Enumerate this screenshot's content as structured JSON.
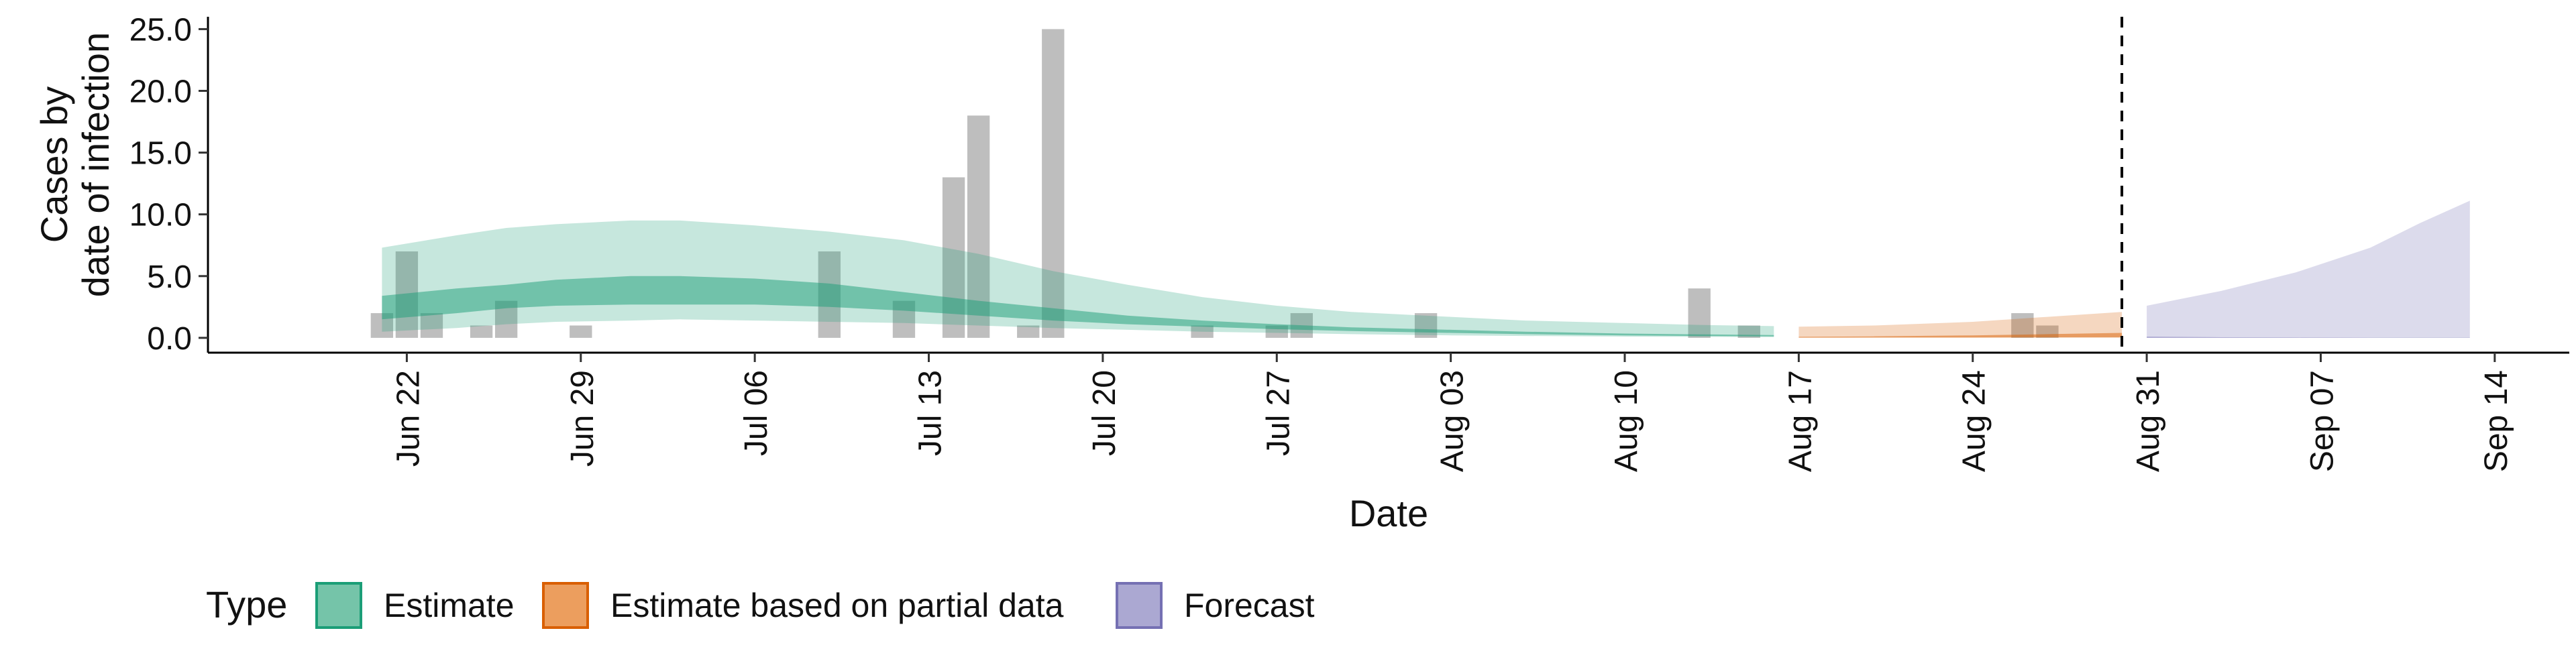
{
  "chart_data": {
    "type": "area",
    "xlabel": "Date",
    "ylabel": [
      "Cases by",
      "date of infection"
    ],
    "x_axis": {
      "min": "2020-06-14",
      "max": "2020-09-17",
      "ticks": [
        {
          "date": "2020-06-22",
          "label": "Jun 22"
        },
        {
          "date": "2020-06-29",
          "label": "Jun 29"
        },
        {
          "date": "2020-07-06",
          "label": "Jul 06"
        },
        {
          "date": "2020-07-13",
          "label": "Jul 13"
        },
        {
          "date": "2020-07-20",
          "label": "Jul 20"
        },
        {
          "date": "2020-07-27",
          "label": "Jul 27"
        },
        {
          "date": "2020-08-03",
          "label": "Aug 03"
        },
        {
          "date": "2020-08-10",
          "label": "Aug 10"
        },
        {
          "date": "2020-08-17",
          "label": "Aug 17"
        },
        {
          "date": "2020-08-24",
          "label": "Aug 24"
        },
        {
          "date": "2020-08-31",
          "label": "Aug 31"
        },
        {
          "date": "2020-09-07",
          "label": "Sep 07"
        },
        {
          "date": "2020-09-14",
          "label": "Sep 14"
        }
      ]
    },
    "y_axis": {
      "min": -1.2,
      "max": 26.0,
      "ticks": [
        {
          "value": 0,
          "label": "0.0"
        },
        {
          "value": 5,
          "label": "5.0"
        },
        {
          "value": 10,
          "label": "10.0"
        },
        {
          "value": 15,
          "label": "15.0"
        },
        {
          "value": 20,
          "label": "20.0"
        },
        {
          "value": 25,
          "label": "25.0"
        }
      ]
    },
    "grid": false,
    "vline": {
      "date": "2020-08-30",
      "style": "dashed"
    },
    "observed_cases": [
      {
        "date": "2020-06-21",
        "value": 2
      },
      {
        "date": "2020-06-22",
        "value": 7
      },
      {
        "date": "2020-06-23",
        "value": 2
      },
      {
        "date": "2020-06-25",
        "value": 1
      },
      {
        "date": "2020-06-26",
        "value": 3
      },
      {
        "date": "2020-06-29",
        "value": 1
      },
      {
        "date": "2020-07-09",
        "value": 7
      },
      {
        "date": "2020-07-12",
        "value": 3
      },
      {
        "date": "2020-07-14",
        "value": 13
      },
      {
        "date": "2020-07-15",
        "value": 18
      },
      {
        "date": "2020-07-17",
        "value": 1
      },
      {
        "date": "2020-07-18",
        "value": 25
      },
      {
        "date": "2020-07-24",
        "value": 1
      },
      {
        "date": "2020-07-27",
        "value": 1
      },
      {
        "date": "2020-07-28",
        "value": 2
      },
      {
        "date": "2020-08-02",
        "value": 2
      },
      {
        "date": "2020-08-13",
        "value": 4
      },
      {
        "date": "2020-08-15",
        "value": 1
      },
      {
        "date": "2020-08-26",
        "value": 2
      },
      {
        "date": "2020-08-27",
        "value": 1
      }
    ],
    "series": [
      {
        "name": "Estimate",
        "color": "#1b9e77",
        "points": [
          {
            "date": "2020-06-21",
            "lo90": 0.5,
            "lo50": 1.5,
            "hi50": 3.4,
            "hi90": 7.3
          },
          {
            "date": "2020-06-24",
            "lo90": 0.8,
            "lo50": 2.0,
            "hi50": 4.0,
            "hi90": 8.3
          },
          {
            "date": "2020-06-26",
            "lo90": 1.1,
            "lo50": 2.4,
            "hi50": 4.3,
            "hi90": 8.9
          },
          {
            "date": "2020-06-28",
            "lo90": 1.3,
            "lo50": 2.6,
            "hi50": 4.7,
            "hi90": 9.2
          },
          {
            "date": "2020-07-01",
            "lo90": 1.4,
            "lo50": 2.7,
            "hi50": 5.0,
            "hi90": 9.5
          },
          {
            "date": "2020-07-03",
            "lo90": 1.5,
            "lo50": 2.7,
            "hi50": 5.0,
            "hi90": 9.5
          },
          {
            "date": "2020-07-06",
            "lo90": 1.4,
            "lo50": 2.7,
            "hi50": 4.8,
            "hi90": 9.1
          },
          {
            "date": "2020-07-09",
            "lo90": 1.3,
            "lo50": 2.5,
            "hi50": 4.4,
            "hi90": 8.6
          },
          {
            "date": "2020-07-12",
            "lo90": 1.2,
            "lo50": 2.2,
            "hi50": 3.7,
            "hi90": 7.9
          },
          {
            "date": "2020-07-15",
            "lo90": 1.0,
            "lo50": 1.8,
            "hi50": 3.0,
            "hi90": 6.8
          },
          {
            "date": "2020-07-18",
            "lo90": 0.8,
            "lo50": 1.4,
            "hi50": 2.4,
            "hi90": 5.4
          },
          {
            "date": "2020-07-21",
            "lo90": 0.65,
            "lo50": 1.1,
            "hi50": 1.8,
            "hi90": 4.3
          },
          {
            "date": "2020-07-24",
            "lo90": 0.5,
            "lo50": 0.9,
            "hi50": 1.4,
            "hi90": 3.3
          },
          {
            "date": "2020-07-27",
            "lo90": 0.4,
            "lo50": 0.7,
            "hi50": 1.1,
            "hi90": 2.6
          },
          {
            "date": "2020-07-30",
            "lo90": 0.3,
            "lo50": 0.55,
            "hi50": 0.85,
            "hi90": 2.1
          },
          {
            "date": "2020-08-03",
            "lo90": 0.2,
            "lo50": 0.4,
            "hi50": 0.65,
            "hi90": 1.7
          },
          {
            "date": "2020-08-06",
            "lo90": 0.15,
            "lo50": 0.3,
            "hi50": 0.5,
            "hi90": 1.4
          },
          {
            "date": "2020-08-10",
            "lo90": 0.1,
            "lo50": 0.2,
            "hi50": 0.35,
            "hi90": 1.2
          },
          {
            "date": "2020-08-13",
            "lo90": 0.08,
            "lo50": 0.15,
            "hi50": 0.28,
            "hi90": 1.05
          },
          {
            "date": "2020-08-16",
            "lo90": 0.06,
            "lo50": 0.12,
            "hi50": 0.22,
            "hi90": 0.95
          }
        ]
      },
      {
        "name": "Estimate based on partial data",
        "color": "#d95f02",
        "points": [
          {
            "date": "2020-08-17",
            "lo90": 0.0,
            "lo50": 0.02,
            "hi50": 0.08,
            "hi90": 0.9
          },
          {
            "date": "2020-08-20",
            "lo90": 0.0,
            "lo50": 0.03,
            "hi50": 0.12,
            "hi90": 1.0
          },
          {
            "date": "2020-08-24",
            "lo90": 0.0,
            "lo50": 0.04,
            "hi50": 0.2,
            "hi90": 1.3
          },
          {
            "date": "2020-08-27",
            "lo90": 0.0,
            "lo50": 0.05,
            "hi50": 0.3,
            "hi90": 1.7
          },
          {
            "date": "2020-08-30",
            "lo90": 0.0,
            "lo50": 0.05,
            "hi50": 0.4,
            "hi90": 2.1
          }
        ]
      },
      {
        "name": "Forecast",
        "color": "#7570b3",
        "points": [
          {
            "date": "2020-08-31",
            "lo90": 0.0,
            "lo50": 0.0,
            "hi50": 0.1,
            "hi90": 2.6
          },
          {
            "date": "2020-09-03",
            "lo90": 0.0,
            "lo50": 0.0,
            "hi50": 0.05,
            "hi90": 3.8
          },
          {
            "date": "2020-09-06",
            "lo90": 0.0,
            "lo50": 0.0,
            "hi50": 0.03,
            "hi90": 5.3
          },
          {
            "date": "2020-09-09",
            "lo90": 0.0,
            "lo50": 0.0,
            "hi50": 0.02,
            "hi90": 7.3
          },
          {
            "date": "2020-09-11",
            "lo90": 0.0,
            "lo50": 0.0,
            "hi50": 0.02,
            "hi90": 9.3
          },
          {
            "date": "2020-09-13",
            "lo90": 0.0,
            "lo50": 0.0,
            "hi50": 0.02,
            "hi90": 11.1
          }
        ]
      }
    ],
    "legend": {
      "title": "Type",
      "position": "bottom",
      "items": [
        {
          "label": "Estimate",
          "fill": "#75c4a9",
          "stroke": "#1b9e77"
        },
        {
          "label": "Estimate based on partial data",
          "fill": "#ec9e5e",
          "stroke": "#d95f02"
        },
        {
          "label": "Forecast",
          "fill": "#aba8d2",
          "stroke": "#7570b3"
        }
      ]
    }
  }
}
